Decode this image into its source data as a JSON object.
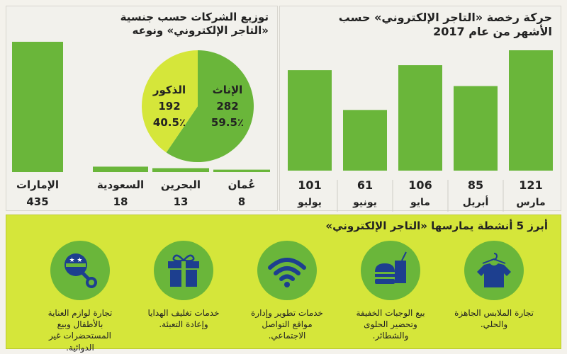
{
  "chart_data": [
    {
      "type": "bar",
      "title": "حركة رخصة «التاجر الإلكتروني» حسب الأشهر من عام 2017",
      "categories": [
        "مارس",
        "أبريل",
        "مايو",
        "يونيو",
        "يوليو"
      ],
      "values": [
        121,
        85,
        106,
        61,
        101
      ],
      "bar_color": "#6ab63a"
    },
    {
      "type": "bar",
      "title": "توزيع الشركات حسب جنسية «التاجر الإلكتروني» ونوعه",
      "categories": [
        "الإمارات",
        "السعودية",
        "البحرين",
        "عُمان"
      ],
      "values": [
        435,
        18,
        13,
        8
      ],
      "bar_color": "#6ab63a"
    },
    {
      "type": "pie",
      "slices": [
        {
          "label": "الإناث",
          "value": 282,
          "percent": "59.5٪",
          "color": "#6ab63a"
        },
        {
          "label": "الذكور",
          "value": 192,
          "percent": "40.5٪",
          "color": "#d5e63a"
        }
      ]
    }
  ],
  "activities": {
    "title": "أبرز 5 أنشطة يمارسها «التاجر الإلكتروني»",
    "items": [
      {
        "icon": "shirt-icon",
        "lines": [
          "تجارة الملابس الجاهزة",
          "والحلي."
        ]
      },
      {
        "icon": "fastfood-icon",
        "lines": [
          "بيع الوجبات الخفيفة",
          "وتحضير الحلوى",
          "والشطائر."
        ]
      },
      {
        "icon": "wifi-icon",
        "lines": [
          "خدمات تطوير وإدارة",
          "مواقع التواصل",
          "الاجتماعي."
        ]
      },
      {
        "icon": "gift-icon",
        "lines": [
          "خدمات تغليف الهدايا",
          "وإعادة التعبئة."
        ]
      },
      {
        "icon": "baby-rattle-icon",
        "lines": [
          "تجارة لوازم العناية",
          "بالأطفال وبيع",
          "المستحضرات غير الدوائية."
        ]
      }
    ]
  },
  "colors": {
    "green": "#6ab63a",
    "lime": "#d5e63a",
    "text": "#222222"
  }
}
